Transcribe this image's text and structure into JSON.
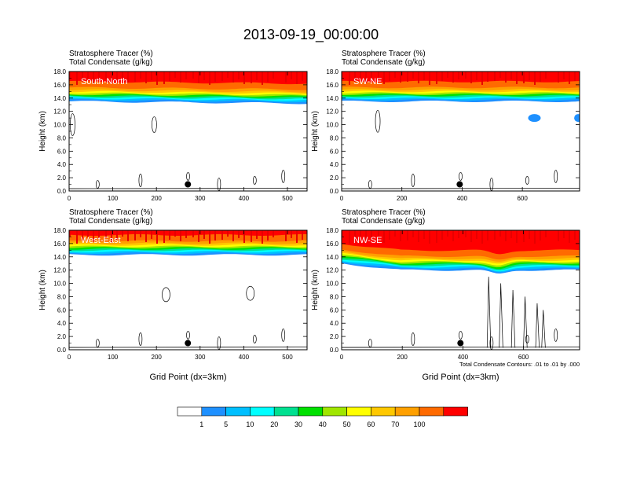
{
  "title": "2013-09-19_00:00:00",
  "colors": {
    "levels": [
      "#ffffff",
      "#1e90ff",
      "#00bfff",
      "#00ffff",
      "#00e090",
      "#00e000",
      "#a0e600",
      "#ffff00",
      "#ffc800",
      "#ffa000",
      "#ff6a00",
      "#ff0000"
    ]
  },
  "chart_data": {
    "type": "contour",
    "panels": [
      {
        "label": "South-North",
        "field_label_1": "Stratosphere Tracer   (%)",
        "field_label_2": "Total Condensate   (g/kg)",
        "ylabel": "Height (km)",
        "xlabel": "",
        "xlim": [
          0,
          545
        ],
        "ylim": [
          0,
          18
        ],
        "xticks": [
          "0",
          "100",
          "200",
          "300",
          "400",
          "500"
        ],
        "xtick_values": [
          0,
          100,
          200,
          300,
          400,
          500
        ],
        "yticks": [
          "0.0",
          "2.0",
          "4.0",
          "6.0",
          "8.0",
          "10.0",
          "12.0",
          "14.0",
          "16.0",
          "18.0"
        ],
        "tracer_base_km": 13.5,
        "marker": {
          "x": 272,
          "y_km": 1.0
        },
        "footnote": ""
      },
      {
        "label": "SW-NE",
        "field_label_1": "Stratosphere Tracer   (%)",
        "field_label_2": "Total Condensate   (g/kg)",
        "ylabel": "Height (km)",
        "xlabel": "",
        "xlim": [
          0,
          790
        ],
        "ylim": [
          0,
          18
        ],
        "xticks": [
          "0",
          "200",
          "400",
          "600"
        ],
        "xtick_values": [
          0,
          200,
          400,
          600
        ],
        "yticks": [
          "0.0",
          "2.0",
          "4.0",
          "6.0",
          "8.0",
          "10.0",
          "12.0",
          "14.0",
          "16.0",
          "18.0"
        ],
        "tracer_base_km": 13.5,
        "marker": {
          "x": 392,
          "y_km": 1.0
        },
        "footnote": ""
      },
      {
        "label": "West-East",
        "field_label_1": "Stratosphere Tracer   (%)",
        "field_label_2": "Total Condensate   (g/kg)",
        "ylabel": "Height (km)",
        "xlabel": "Grid Point (dx=3km)",
        "xlim": [
          0,
          545
        ],
        "ylim": [
          0,
          18
        ],
        "xticks": [
          "0",
          "100",
          "200",
          "300",
          "400",
          "500"
        ],
        "xtick_values": [
          0,
          100,
          200,
          300,
          400,
          500
        ],
        "yticks": [
          "0.0",
          "2.0",
          "4.0",
          "6.0",
          "8.0",
          "10.0",
          "12.0",
          "14.0",
          "16.0",
          "18.0"
        ],
        "tracer_base_km": 14.3,
        "marker": {
          "x": 272,
          "y_km": 1.0
        },
        "footnote": ""
      },
      {
        "label": "NW-SE",
        "field_label_1": "Stratosphere Tracer   (%)",
        "field_label_2": "Total Condensate   (g/kg)",
        "ylabel": "Height (km)",
        "xlabel": "Grid Point (dx=3km)",
        "xlim": [
          0,
          785
        ],
        "ylim": [
          0,
          18
        ],
        "xticks": [
          "0",
          "200",
          "400",
          "600"
        ],
        "xtick_values": [
          0,
          200,
          400,
          600
        ],
        "yticks": [
          "0.0",
          "2.0",
          "4.0",
          "6.0",
          "8.0",
          "10.0",
          "12.0",
          "14.0",
          "16.0",
          "18.0"
        ],
        "tracer_base_km": 12.0,
        "marker": {
          "x": 392,
          "y_km": 1.0
        },
        "footnote": "Total Condensate Contours: .01 to .01 by .000"
      }
    ],
    "colorbar": {
      "label_values": [
        "1",
        "5",
        "10",
        "20",
        "30",
        "40",
        "50",
        "60",
        "70",
        "100"
      ],
      "colors": [
        "#ffffff",
        "#1e90ff",
        "#00bfff",
        "#00ffff",
        "#00e090",
        "#00e000",
        "#a0e600",
        "#ffff00",
        "#ffc800",
        "#ffa000",
        "#ff6a00",
        "#ff0000"
      ]
    }
  }
}
